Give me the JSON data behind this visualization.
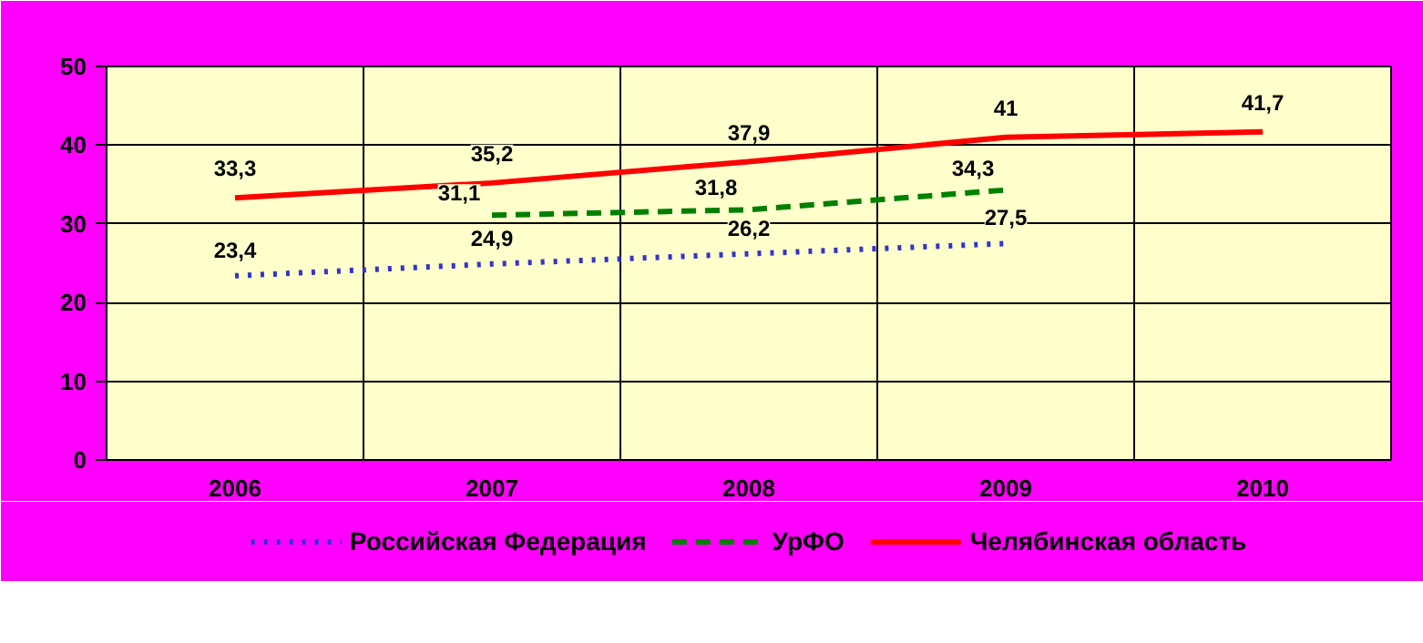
{
  "chart_data": {
    "type": "line",
    "categories": [
      "2006",
      "2007",
      "2008",
      "2009",
      "2010"
    ],
    "series": [
      {
        "name": "Российская Федерация",
        "color": "#3333cc",
        "line_style": "dotted",
        "values": [
          23.4,
          24.9,
          26.2,
          27.5,
          null
        ],
        "value_labels": [
          "23,4",
          "24,9",
          "26,2",
          "27,5",
          null
        ]
      },
      {
        "name": "УрФО",
        "color": "#008000",
        "line_style": "dashed",
        "values": [
          null,
          31.1,
          31.8,
          34.3,
          null
        ],
        "value_labels": [
          null,
          "31,1",
          "31,8",
          "34,3",
          null
        ]
      },
      {
        "name": "Челябинская область",
        "color": "#ff0000",
        "line_style": "solid",
        "values": [
          33.3,
          35.2,
          37.9,
          41,
          41.7
        ],
        "value_labels": [
          "33,3",
          "35,2",
          "37,9",
          "41",
          "41,7"
        ]
      }
    ],
    "ylim": [
      0,
      50
    ],
    "yticks": [
      0,
      10,
      20,
      30,
      40,
      50
    ],
    "grid": true,
    "legend": "bottom",
    "marker": "none"
  }
}
